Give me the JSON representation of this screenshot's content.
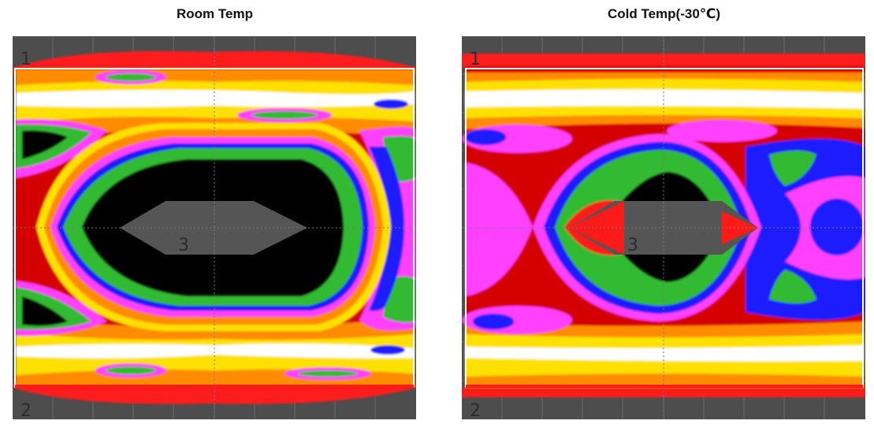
{
  "panels": [
    {
      "title": "Room Temp",
      "markers": {
        "top": "1",
        "bottom": "2",
        "center": "3"
      }
    },
    {
      "title": "Cold Temp(-30℃)",
      "markers": {
        "top": "1",
        "bottom": "2",
        "center": "3"
      }
    }
  ],
  "colors": {
    "background": "#4d4d4d",
    "grid": "#6a6a6a",
    "red": "#ff1a1a",
    "dark_red": "#c80000",
    "orange": "#ff8c00",
    "yellow": "#ffe000",
    "white": "#ffffff",
    "magenta": "#ff40ff",
    "blue": "#1a1aff",
    "green": "#33bb33",
    "black": "#000000",
    "mask": "#555555"
  }
}
